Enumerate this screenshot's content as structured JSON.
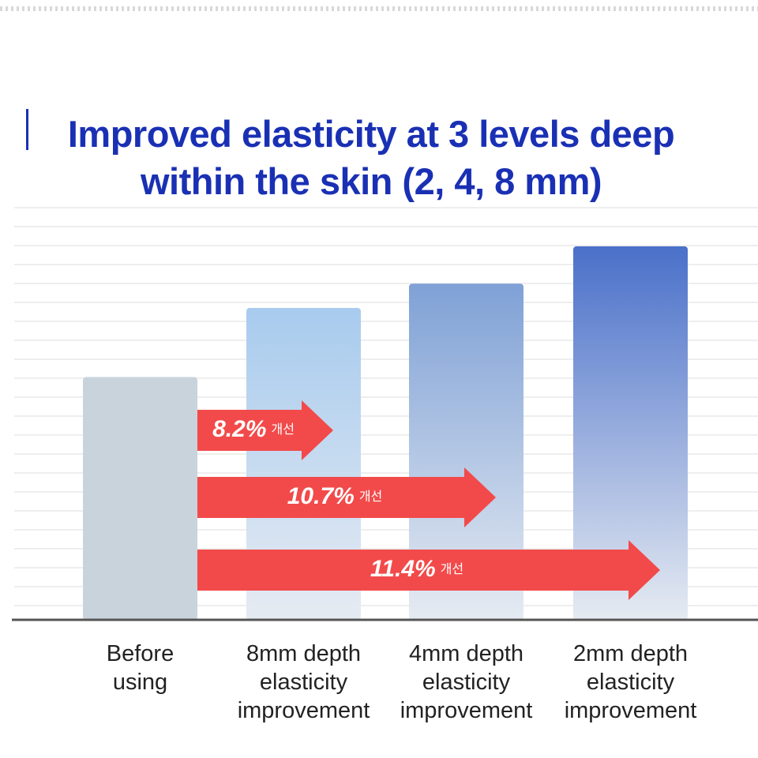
{
  "chart_data": {
    "type": "bar",
    "title_lines": [
      "Improved elasticity at 3 levels deep",
      "within the skin (2, 4, 8 mm)"
    ],
    "categories": [
      "Before using",
      "8mm depth elasticity improvement",
      "4mm depth elasticity improvement",
      "2mm depth elasticity improvement"
    ],
    "values": [
      65,
      83.5,
      90,
      100
    ],
    "colors": [
      "#c9d3dc",
      "#a8cbee",
      "#7fa1d6",
      "#4a70c9"
    ],
    "ylim": [
      0,
      100
    ],
    "annotations": [
      {
        "value": 8.2,
        "label": "8.2%",
        "text": "개선"
      },
      {
        "value": 10.7,
        "label": "10.7%",
        "text": "개선"
      },
      {
        "value": 11.4,
        "label": "11.4%",
        "text": "개선"
      }
    ],
    "annotation_color": "#f24a4a"
  }
}
